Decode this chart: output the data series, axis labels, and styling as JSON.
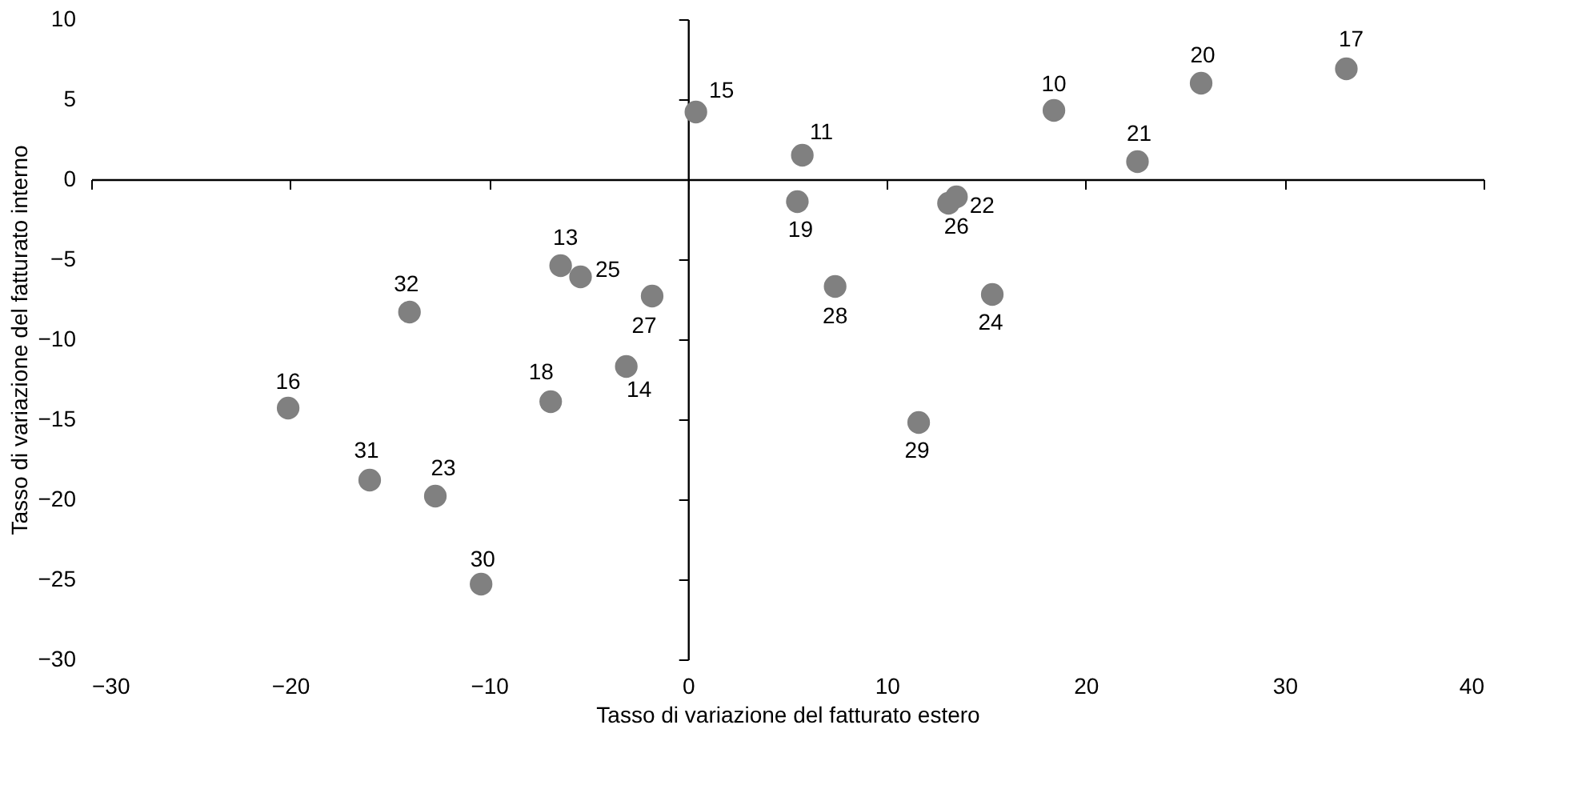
{
  "chart_data": {
    "type": "scatter",
    "xlabel": "Tasso di variazione del fatturato  estero",
    "ylabel": "Tasso di variazione del fatturato interno",
    "x": [
      18.4,
      5.75,
      -6.4,
      -3.1,
      0.4,
      -20.1,
      33.1,
      -6.9,
      5.5,
      25.8,
      22.6,
      13.5,
      -12.7,
      15.3,
      -5.4,
      13.1,
      -1.8,
      7.4,
      11.6,
      -10.4,
      -16.0,
      -14.0
    ],
    "values": [
      4.3,
      1.5,
      -5.4,
      -11.7,
      4.2,
      -14.3,
      6.9,
      -13.9,
      -1.4,
      6.0,
      1.1,
      -1.1,
      -19.8,
      -7.2,
      -6.1,
      -1.5,
      -7.3,
      -6.7,
      -15.2,
      -25.3,
      -18.8,
      -8.3
    ],
    "annotations": [
      {
        "text": "10",
        "x": 18.4,
        "y": 4.3
      },
      {
        "text": "11",
        "x": 5.75,
        "y": 1.5
      },
      {
        "text": "13",
        "x": -6.4,
        "y": -5.4
      },
      {
        "text": "14",
        "x": -3.1,
        "y": -11.7
      },
      {
        "text": "15",
        "x": 0.4,
        "y": 4.2
      },
      {
        "text": "16",
        "x": -20.1,
        "y": -14.3
      },
      {
        "text": "17",
        "x": 33.1,
        "y": 6.9
      },
      {
        "text": "18",
        "x": -6.9,
        "y": -13.9
      },
      {
        "text": "19",
        "x": 5.5,
        "y": -1.4
      },
      {
        "text": "20",
        "x": 25.8,
        "y": 6.0
      },
      {
        "text": "21",
        "x": 22.6,
        "y": 1.1
      },
      {
        "text": "22",
        "x": 13.5,
        "y": -1.1
      },
      {
        "text": "23",
        "x": -12.7,
        "y": -19.8
      },
      {
        "text": "24",
        "x": 15.3,
        "y": -7.2
      },
      {
        "text": "25",
        "x": -5.4,
        "y": -6.1
      },
      {
        "text": "26",
        "x": 13.1,
        "y": -1.5
      },
      {
        "text": "27",
        "x": -1.8,
        "y": -7.3
      },
      {
        "text": "28",
        "x": 7.4,
        "y": -6.7
      },
      {
        "text": "29",
        "x": 11.6,
        "y": -15.2
      },
      {
        "text": "30",
        "x": -10.4,
        "y": -25.3
      },
      {
        "text": "31",
        "x": -16.0,
        "y": -18.8
      },
      {
        "text": "32",
        "x": -14.0,
        "y": -8.3
      }
    ],
    "color": "#808080",
    "xlim": [
      -30,
      40
    ],
    "ylim": [
      -30,
      10
    ],
    "xticks": [
      -30,
      -20,
      -10,
      0,
      10,
      20,
      30,
      40
    ],
    "yticks": [
      -30,
      -25,
      -20,
      -15,
      -10,
      -5,
      0,
      5,
      10
    ]
  }
}
